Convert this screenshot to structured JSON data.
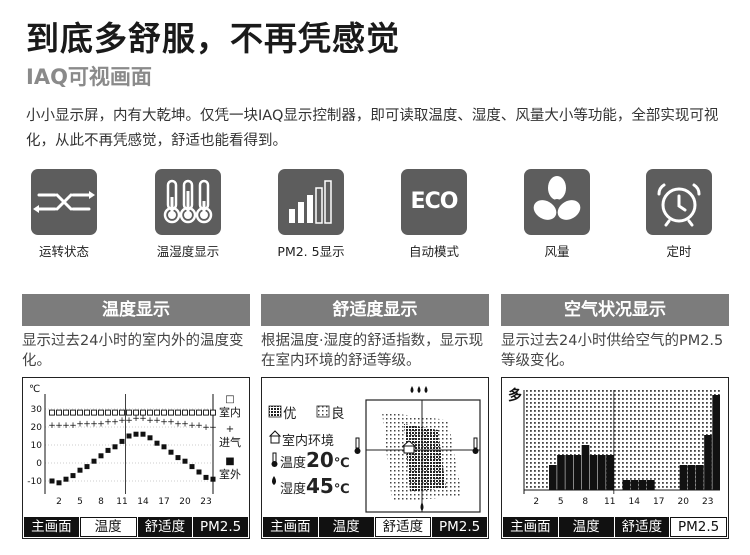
{
  "header": {
    "headline": "到底多舒服，不再凭感觉",
    "subhead": "IAQ可视画面",
    "intro": "小小显示屏，内有大乾坤。仅凭一块IAQ显示控制器，即可读取温度、湿度、风量大小等功能，全部实现可视化，从此不再凭感觉，舒适也能看得到。"
  },
  "features": [
    {
      "icon": "circulation-icon",
      "label": "运转状态"
    },
    {
      "icon": "thermometers-icon",
      "label": "温湿度显示"
    },
    {
      "icon": "signal-bars-icon",
      "label": "PM2. 5显示"
    },
    {
      "icon": "eco-icon",
      "icon_text": "ECO",
      "label": "自动模式"
    },
    {
      "icon": "fan-icon",
      "label": "风量"
    },
    {
      "icon": "alarm-clock-icon",
      "label": "定时"
    }
  ],
  "panels": [
    {
      "title": "温度显示",
      "desc": "显示过去24小时的室内外的温度变化。",
      "screen": {
        "unit": "℃",
        "y_ticks": [
          "30",
          "20",
          "10",
          "0",
          "-10"
        ],
        "x_ticks": [
          "2",
          "5",
          "8",
          "11",
          "14",
          "17",
          "20",
          "23"
        ],
        "legend": [
          {
            "symbol": "□",
            "label": "室内"
          },
          {
            "symbol": "+",
            "label": "进气"
          },
          {
            "symbol": "■",
            "label": "室外"
          }
        ]
      },
      "tabs": [
        "主画面",
        "温度",
        "舒适度",
        "PM2.5"
      ],
      "active_tab": 1
    },
    {
      "title": "舒适度显示",
      "desc": "根据温度·湿度的舒适指数，显示现在室内环境的舒适等级。",
      "screen": {
        "legend_good": "优",
        "legend_ok": "良",
        "env_label": "室内环境",
        "temp_label": "温度",
        "temp_value": "20",
        "temp_unit": "℃",
        "hum_label": "湿度",
        "hum_value": "45",
        "hum_unit": "℃"
      },
      "tabs": [
        "主画面",
        "温度",
        "舒适度",
        "PM2.5"
      ],
      "active_tab": 2
    },
    {
      "title": "空气状况显示",
      "desc": "显示过去24小时供给空气的PM2.5等级变化。",
      "screen": {
        "label_many": "多",
        "x_ticks": [
          "2",
          "5",
          "8",
          "11",
          "14",
          "17",
          "20",
          "23"
        ]
      },
      "tabs": [
        "主画面",
        "温度",
        "舒适度",
        "PM2.5"
      ],
      "active_tab": 3
    }
  ],
  "chart_data": [
    {
      "type": "scatter",
      "title": "",
      "xlabel": "",
      "ylabel": "℃",
      "xlim": [
        0,
        24
      ],
      "ylim": [
        -15,
        35
      ],
      "x": [
        1,
        2,
        3,
        4,
        5,
        6,
        7,
        8,
        9,
        10,
        11,
        12,
        13,
        14,
        15,
        16,
        17,
        18,
        19,
        20,
        21,
        22,
        23,
        24
      ],
      "series": [
        {
          "name": "室内",
          "values": [
            28,
            28,
            28,
            28,
            28,
            28,
            28,
            28,
            28,
            28,
            28,
            28,
            28,
            28,
            28,
            28,
            28,
            28,
            28,
            28,
            28,
            28,
            28,
            28
          ]
        },
        {
          "name": "进气",
          "values": [
            21,
            21,
            21,
            21,
            22,
            22,
            22,
            22,
            23,
            23,
            24,
            24,
            25,
            25,
            24,
            24,
            23,
            23,
            22,
            22,
            21,
            21,
            20,
            20
          ]
        },
        {
          "name": "室外",
          "values": [
            -10,
            -11,
            -9,
            -7,
            -4,
            -2,
            1,
            4,
            7,
            9,
            12,
            15,
            16,
            16,
            14,
            11,
            9,
            6,
            3,
            1,
            -2,
            -5,
            -8,
            -9
          ]
        }
      ]
    },
    {
      "type": "bar",
      "title": "",
      "xlabel": "",
      "ylabel": "",
      "categories": [
        "1",
        "2",
        "3",
        "4",
        "5",
        "6",
        "7",
        "8",
        "9",
        "10",
        "11",
        "12",
        "13",
        "14",
        "15",
        "16",
        "17",
        "18",
        "19",
        "20",
        "21",
        "22",
        "23",
        "24"
      ],
      "ylim": [
        0,
        10
      ],
      "values": [
        0,
        0,
        0,
        2.5,
        3.5,
        3.5,
        3.5,
        4.5,
        3.5,
        3.5,
        3.5,
        0,
        1.0,
        1.0,
        1.0,
        1.0,
        0,
        0,
        0,
        2.5,
        2.5,
        2.5,
        5.5,
        9.5
      ]
    }
  ]
}
